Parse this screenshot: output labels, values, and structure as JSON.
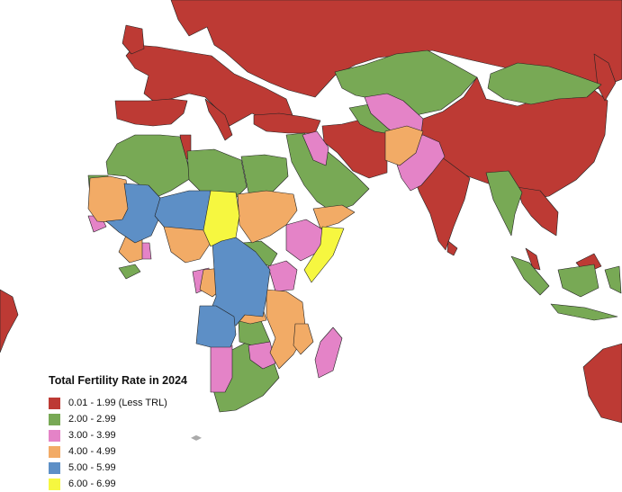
{
  "legend": {
    "title": "Total Fertility Rate in 2024",
    "items": [
      {
        "label": "0.01 - 1.99 (Less TRL)",
        "color": "#bd3a34"
      },
      {
        "label": "2.00 - 2.99",
        "color": "#78a955"
      },
      {
        "label": "3.00 - 3.99",
        "color": "#e483c7"
      },
      {
        "label": "4.00 - 4.99",
        "color": "#f2ab66"
      },
      {
        "label": "5.00 - 5.99",
        "color": "#5d8fc6"
      },
      {
        "label": "6.00 - 6.99",
        "color": "#f6f740"
      }
    ]
  }
}
